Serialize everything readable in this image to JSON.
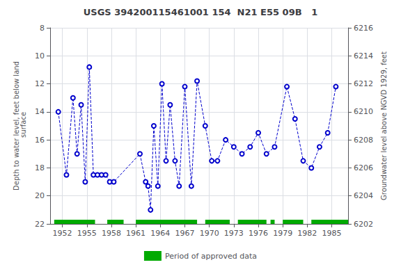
{
  "chart_data": {
    "type": "line",
    "title": "USGS 394200115461001 154  N21 E55 09B   1",
    "ylabel": "Depth to water level, feet below land\n surface",
    "y2label": "Groundwater level above NGVD 1929, feet",
    "x": [
      1951.5,
      1952.5,
      1953.3,
      1953.8,
      1954.3,
      1954.8,
      1955.3,
      1955.8,
      1956.3,
      1956.8,
      1957.3,
      1957.8,
      1958.3,
      1961.5,
      1962.2,
      1962.5,
      1962.8,
      1963.2,
      1963.7,
      1964.2,
      1964.7,
      1965.2,
      1965.8,
      1966.3,
      1967.0,
      1967.8,
      1968.5,
      1969.5,
      1970.3,
      1971.0,
      1972.0,
      1973.0,
      1974.0,
      1975.0,
      1976.0,
      1977.0,
      1978.0,
      1979.5,
      1980.5,
      1981.5,
      1982.5,
      1983.5,
      1984.5,
      1985.5
    ],
    "series": [
      {
        "type": "line",
        "color": "#0000CC",
        "line_style": "dashed",
        "marker": "open_circle",
        "values": [
          14.0,
          18.5,
          13.0,
          17.0,
          13.5,
          19.0,
          10.8,
          18.5,
          18.5,
          18.5,
          18.5,
          19.0,
          19.0,
          17.0,
          19.0,
          19.3,
          21.0,
          15.0,
          19.3,
          12.0,
          17.5,
          13.5,
          17.5,
          19.3,
          12.2,
          19.3,
          11.8,
          15.0,
          17.5,
          17.5,
          16.0,
          16.5,
          17.0,
          16.5,
          15.5,
          17.0,
          16.5,
          12.2,
          14.5,
          17.5,
          18.0,
          16.5,
          15.5,
          12.2
        ]
      },
      {
        "name": "Period of approved data",
        "type": "band",
        "color": "#00AA00",
        "y": 22,
        "segments": [
          [
            1951.0,
            1956.0
          ],
          [
            1957.5,
            1959.5
          ],
          [
            1961.0,
            1968.5
          ],
          [
            1969.5,
            1972.5
          ],
          [
            1973.5,
            1977.0
          ],
          [
            1977.5,
            1978.0
          ],
          [
            1979.0,
            1981.5
          ],
          [
            1982.5,
            1987.0
          ]
        ]
      }
    ],
    "xlim": [
      1950.5,
      1987
    ],
    "xticks": [
      1952,
      1955,
      1958,
      1961,
      1964,
      1967,
      1970,
      1973,
      1976,
      1979,
      1982,
      1985
    ],
    "ylim": [
      22,
      8
    ],
    "yticks": [
      8,
      10,
      12,
      14,
      16,
      18,
      20,
      22
    ],
    "y2lim": [
      6202,
      6216
    ],
    "y2ticks": [
      6216,
      6214,
      6212,
      6210,
      6208,
      6206,
      6204,
      6202
    ],
    "grid": true,
    "legend": "bottom"
  }
}
